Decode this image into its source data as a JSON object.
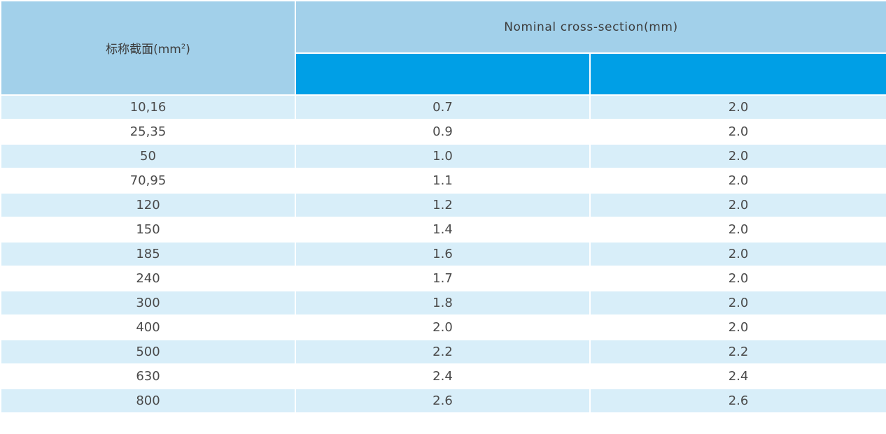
{
  "header": {
    "col1_label": "标称截面(mm",
    "col1_sup": "2",
    "col1_close": ")",
    "group_label": "Nominal cross-section(mm)",
    "sub_col2_label": "",
    "sub_col3_label": ""
  },
  "rows": [
    {
      "section": "10,16",
      "v1": "0.7",
      "v2": "2.0"
    },
    {
      "section": "25,35",
      "v1": "0.9",
      "v2": "2.0"
    },
    {
      "section": "50",
      "v1": "1.0",
      "v2": "2.0"
    },
    {
      "section": "70,95",
      "v1": "1.1",
      "v2": "2.0"
    },
    {
      "section": "120",
      "v1": "1.2",
      "v2": "2.0"
    },
    {
      "section": "150",
      "v1": "1.4",
      "v2": "2.0"
    },
    {
      "section": "185",
      "v1": "1.6",
      "v2": "2.0"
    },
    {
      "section": "240",
      "v1": "1.7",
      "v2": "2.0"
    },
    {
      "section": "300",
      "v1": "1.8",
      "v2": "2.0"
    },
    {
      "section": "400",
      "v1": "2.0",
      "v2": "2.0"
    },
    {
      "section": "500",
      "v1": "2.2",
      "v2": "2.2"
    },
    {
      "section": "630",
      "v1": "2.4",
      "v2": "2.4"
    },
    {
      "section": "800",
      "v1": "2.6",
      "v2": "2.6"
    }
  ],
  "colors": {
    "header_light": "#a2d0ea",
    "header_accent": "#009fe6",
    "row_stripe": "#d8eef9",
    "row_plain": "#ffffff"
  }
}
